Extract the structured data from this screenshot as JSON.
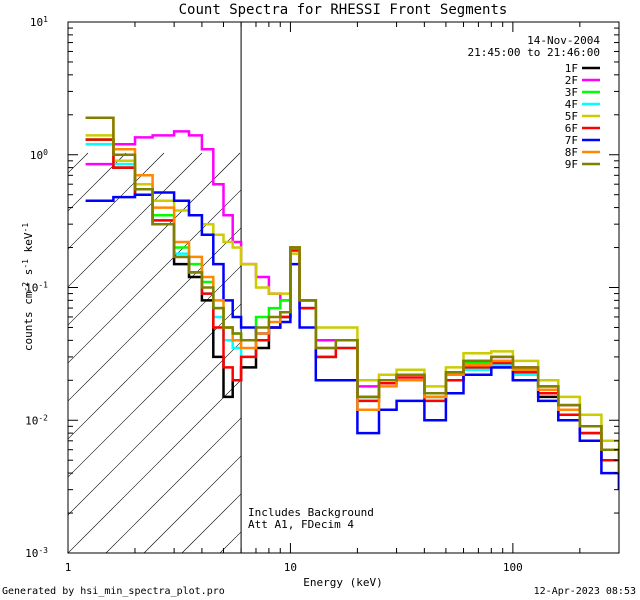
{
  "chart_data": {
    "type": "line",
    "title": "Count Spectra for RHESSI Front Segments",
    "xlabel": "Energy (keV)",
    "ylabel": "counts cm^-2 s^-1 keV^-1",
    "xscale": "log",
    "yscale": "log",
    "xlim": [
      1,
      300
    ],
    "ylim": [
      0.001,
      10
    ],
    "x_ticks": [
      "1",
      "10",
      "100"
    ],
    "date": "14-Nov-2004",
    "time_range": "21:45:00 to 21:46:00",
    "attenuator_note": "Includes Background",
    "decimation_note": "Att A1, FDecim 4",
    "shaded_below_keV": 6,
    "series": [
      {
        "name": "1F",
        "color": "#000000",
        "x": [
          1.2,
          1.6,
          2,
          2.4,
          3,
          3.5,
          4,
          4.5,
          5,
          5.5,
          6,
          7,
          8,
          9,
          10,
          11,
          13,
          16,
          20,
          25,
          30,
          40,
          50,
          60,
          80,
          100,
          130,
          160,
          200,
          250,
          300
        ],
        "values": [
          1.3,
          0.8,
          0.5,
          0.3,
          0.15,
          0.12,
          0.08,
          0.03,
          0.015,
          0.02,
          0.025,
          0.035,
          0.05,
          0.06,
          0.2,
          0.08,
          0.03,
          0.04,
          0.015,
          0.02,
          0.022,
          0.015,
          0.02,
          0.025,
          0.025,
          0.02,
          0.015,
          0.01,
          0.008,
          0.005,
          0.003
        ]
      },
      {
        "name": "2F",
        "color": "#ff00ff",
        "x": [
          1.2,
          1.6,
          2,
          2.4,
          3,
          3.5,
          4,
          4.5,
          5,
          5.5,
          6,
          7,
          8,
          9,
          10,
          11,
          13,
          16,
          20,
          25,
          30,
          40,
          50,
          60,
          80,
          100,
          130,
          160,
          200,
          250,
          300
        ],
        "values": [
          0.85,
          1.2,
          1.35,
          1.4,
          1.5,
          1.4,
          1.1,
          0.6,
          0.35,
          0.22,
          0.15,
          0.12,
          0.09,
          0.08,
          0.2,
          0.07,
          0.04,
          0.04,
          0.018,
          0.02,
          0.022,
          0.016,
          0.022,
          0.028,
          0.03,
          0.025,
          0.018,
          0.013,
          0.009,
          0.006,
          0.004
        ]
      },
      {
        "name": "3F",
        "color": "#00ff00",
        "x": [
          1.2,
          1.6,
          2,
          2.4,
          3,
          3.5,
          4,
          4.5,
          5,
          5.5,
          6,
          7,
          8,
          9,
          10,
          11,
          13,
          16,
          20,
          25,
          30,
          40,
          50,
          60,
          80,
          100,
          130,
          160,
          200,
          250,
          300
        ],
        "values": [
          1.3,
          0.9,
          0.55,
          0.35,
          0.2,
          0.15,
          0.11,
          0.07,
          0.05,
          0.045,
          0.04,
          0.06,
          0.07,
          0.08,
          0.2,
          0.08,
          0.03,
          0.04,
          0.015,
          0.02,
          0.022,
          0.015,
          0.022,
          0.027,
          0.028,
          0.024,
          0.017,
          0.012,
          0.009,
          0.006,
          0.004
        ]
      },
      {
        "name": "4F",
        "color": "#00ffff",
        "x": [
          1.2,
          1.6,
          2,
          2.4,
          3,
          3.5,
          4,
          4.5,
          5,
          5.5,
          6,
          7,
          8,
          9,
          10,
          11,
          13,
          16,
          20,
          25,
          30,
          40,
          50,
          60,
          80,
          100,
          130,
          160,
          200,
          250,
          300
        ],
        "values": [
          1.2,
          0.85,
          0.5,
          0.32,
          0.18,
          0.13,
          0.09,
          0.06,
          0.04,
          0.035,
          0.03,
          0.04,
          0.05,
          0.06,
          0.19,
          0.07,
          0.03,
          0.035,
          0.014,
          0.019,
          0.02,
          0.014,
          0.02,
          0.024,
          0.026,
          0.022,
          0.016,
          0.011,
          0.008,
          0.005,
          0.003
        ]
      },
      {
        "name": "5F",
        "color": "#cccc00",
        "x": [
          1.2,
          1.6,
          2,
          2.4,
          3,
          3.5,
          4,
          4.5,
          5,
          5.5,
          6,
          7,
          8,
          9,
          10,
          11,
          13,
          16,
          20,
          25,
          30,
          40,
          50,
          60,
          80,
          100,
          130,
          160,
          200,
          250,
          300
        ],
        "values": [
          1.4,
          0.9,
          0.6,
          0.45,
          0.38,
          0.35,
          0.3,
          0.25,
          0.22,
          0.2,
          0.15,
          0.1,
          0.09,
          0.09,
          0.18,
          0.08,
          0.05,
          0.05,
          0.02,
          0.022,
          0.024,
          0.018,
          0.025,
          0.032,
          0.033,
          0.028,
          0.02,
          0.015,
          0.011,
          0.007,
          0.005
        ]
      },
      {
        "name": "6F",
        "color": "#ff0000",
        "x": [
          1.2,
          1.6,
          2,
          2.4,
          3,
          3.5,
          4,
          4.5,
          5,
          5.5,
          6,
          7,
          8,
          9,
          10,
          11,
          13,
          16,
          20,
          25,
          30,
          40,
          50,
          60,
          80,
          100,
          130,
          160,
          200,
          250,
          300
        ],
        "values": [
          1.3,
          0.8,
          0.5,
          0.32,
          0.17,
          0.13,
          0.09,
          0.05,
          0.025,
          0.02,
          0.03,
          0.04,
          0.05,
          0.06,
          0.19,
          0.07,
          0.03,
          0.035,
          0.014,
          0.019,
          0.021,
          0.014,
          0.02,
          0.025,
          0.027,
          0.023,
          0.016,
          0.011,
          0.008,
          0.005,
          0.003
        ]
      },
      {
        "name": "7F",
        "color": "#0000ff",
        "x": [
          1.2,
          1.6,
          2,
          2.4,
          3,
          3.5,
          4,
          4.5,
          5,
          5.5,
          6,
          7,
          8,
          9,
          10,
          11,
          13,
          16,
          20,
          25,
          30,
          40,
          50,
          60,
          80,
          100,
          130,
          160,
          200,
          250,
          300
        ],
        "values": [
          0.45,
          0.48,
          0.5,
          0.52,
          0.45,
          0.35,
          0.25,
          0.15,
          0.08,
          0.06,
          0.05,
          0.045,
          0.05,
          0.055,
          0.15,
          0.05,
          0.02,
          0.02,
          0.008,
          0.012,
          0.014,
          0.01,
          0.016,
          0.022,
          0.025,
          0.02,
          0.014,
          0.01,
          0.007,
          0.004,
          0.003
        ]
      },
      {
        "name": "8F",
        "color": "#ff8800",
        "x": [
          1.2,
          1.6,
          2,
          2.4,
          3,
          3.5,
          4,
          4.5,
          5,
          5.5,
          6,
          7,
          8,
          9,
          10,
          11,
          13,
          16,
          20,
          25,
          30,
          40,
          50,
          60,
          80,
          100,
          130,
          160,
          200,
          250,
          300
        ],
        "values": [
          1.9,
          1.1,
          0.7,
          0.4,
          0.22,
          0.17,
          0.12,
          0.08,
          0.05,
          0.04,
          0.035,
          0.045,
          0.055,
          0.065,
          0.2,
          0.08,
          0.035,
          0.04,
          0.012,
          0.018,
          0.02,
          0.015,
          0.022,
          0.026,
          0.028,
          0.024,
          0.017,
          0.012,
          0.009,
          0.006,
          0.004
        ]
      },
      {
        "name": "9F",
        "color": "#808000",
        "x": [
          1.2,
          1.6,
          2,
          2.4,
          3,
          3.5,
          4,
          4.5,
          5,
          5.5,
          6,
          7,
          8,
          9,
          10,
          11,
          13,
          16,
          20,
          25,
          30,
          40,
          50,
          60,
          80,
          100,
          130,
          160,
          200,
          250,
          300
        ],
        "values": [
          1.9,
          1.0,
          0.55,
          0.3,
          0.17,
          0.13,
          0.1,
          0.07,
          0.05,
          0.045,
          0.04,
          0.05,
          0.06,
          0.065,
          0.2,
          0.08,
          0.035,
          0.04,
          0.015,
          0.02,
          0.022,
          0.016,
          0.023,
          0.028,
          0.03,
          0.025,
          0.018,
          0.013,
          0.009,
          0.006,
          0.004
        ]
      }
    ]
  },
  "footer": {
    "generated_by": "Generated by hsi_min_spectra_plot.pro",
    "timestamp": "12-Apr-2023 08:53"
  }
}
